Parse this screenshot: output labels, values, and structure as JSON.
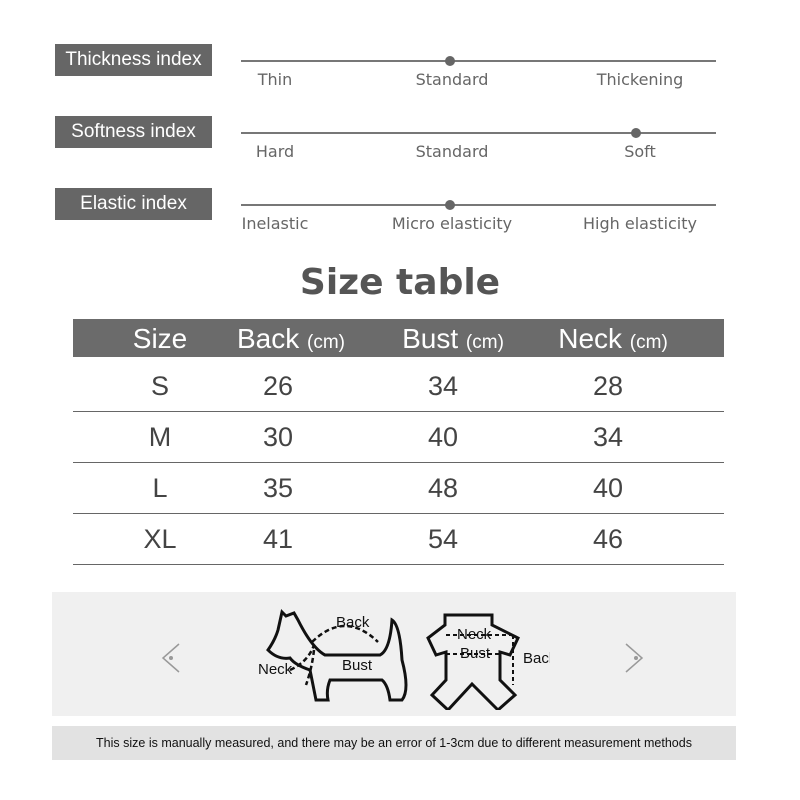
{
  "indices": [
    {
      "label": "Thickness index",
      "options": [
        "Thin",
        "Standard",
        "Thickening"
      ],
      "selected": 1
    },
    {
      "label": "Softness index",
      "options": [
        "Hard",
        "Standard",
        "Soft"
      ],
      "selected": 2
    },
    {
      "label": "Elastic index",
      "options": [
        "Inelastic",
        "Micro elasticity",
        "High elasticity"
      ],
      "selected": 1
    }
  ],
  "size_table": {
    "title": "Size table",
    "headers": [
      {
        "name": "Size",
        "unit": ""
      },
      {
        "name": "Back",
        "unit": "(cm)"
      },
      {
        "name": "Bust",
        "unit": "(cm)"
      },
      {
        "name": "Neck",
        "unit": "(cm)"
      }
    ],
    "rows": [
      [
        "S",
        "26",
        "34",
        "28"
      ],
      [
        "M",
        "30",
        "40",
        "34"
      ],
      [
        "L",
        "35",
        "48",
        "40"
      ],
      [
        "XL",
        "41",
        "54",
        "46"
      ]
    ]
  },
  "diagram": {
    "dog_labels": [
      "Back",
      "Neck",
      "Bust"
    ],
    "clothes_labels": [
      "Neck",
      "Bust",
      "Back"
    ],
    "prev_icon": "chevron-left-icon",
    "next_icon": "chevron-right-icon"
  },
  "note": "This size is manually measured, and there may be an error of 1-3cm due to different measurement methods"
}
